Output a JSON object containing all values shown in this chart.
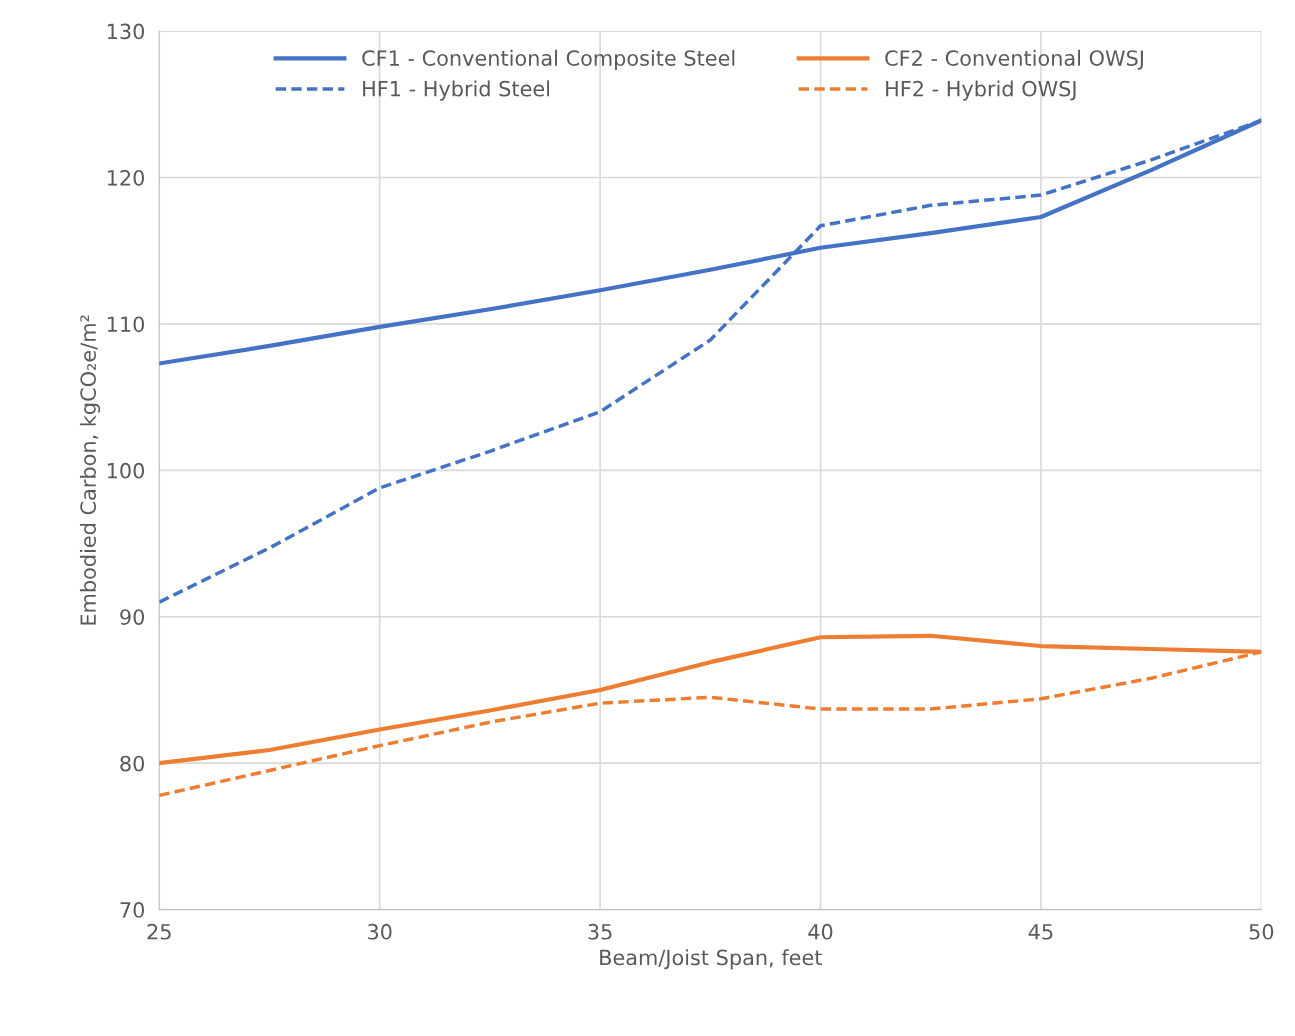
{
  "chart_data": {
    "type": "line",
    "xlabel": "Beam/Joist Span, feet",
    "ylabel": "Embodied Carbon, kgCO₂e/m²",
    "x": [
      25,
      27.5,
      30,
      32.5,
      35,
      37.5,
      40,
      42.5,
      45,
      47.5,
      50
    ],
    "series": [
      {
        "name": "CF1 - Conventional Composite Steel",
        "color": "#4472c4",
        "line_style": "solid",
        "values": [
          107.3,
          108.5,
          109.8,
          111.0,
          112.3,
          113.7,
          115.2,
          116.2,
          117.3,
          120.5,
          123.9
        ]
      },
      {
        "name": "CF2 - Conventional OWSJ",
        "color": "#ed7d31",
        "line_style": "solid",
        "values": [
          80.0,
          80.9,
          82.3,
          83.6,
          85.0,
          86.9,
          88.6,
          88.7,
          88.0,
          87.8,
          87.6
        ]
      },
      {
        "name": "HF1 - Hybrid Steel",
        "color": "#4472c4",
        "line_style": "dashed",
        "values": [
          91.0,
          94.7,
          98.8,
          101.3,
          104.0,
          108.9,
          116.7,
          118.1,
          118.8,
          121.2,
          123.9
        ]
      },
      {
        "name": "HF2 - Hybrid OWSJ",
        "color": "#ed7d31",
        "line_style": "dashed",
        "values": [
          77.8,
          79.5,
          81.2,
          82.8,
          84.1,
          84.5,
          83.7,
          83.7,
          84.4,
          85.8,
          87.6
        ]
      }
    ],
    "xlim": [
      25,
      50
    ],
    "xticks": [
      25,
      30,
      35,
      40,
      45,
      50
    ],
    "ylim": [
      70,
      130
    ],
    "yticks": [
      70,
      80,
      90,
      100,
      110,
      120,
      130
    ],
    "grid": true,
    "legend": "top",
    "marker": "none"
  }
}
